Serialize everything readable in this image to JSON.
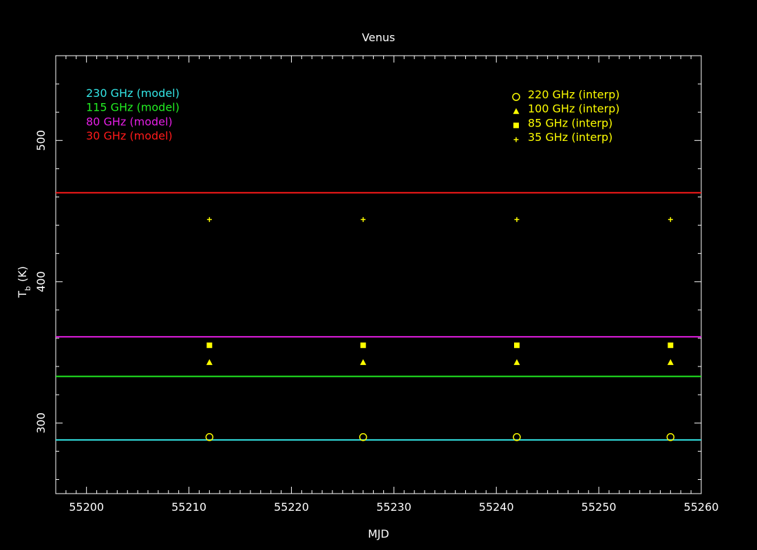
{
  "chart_data": {
    "type": "scatter",
    "title": "Venus",
    "xlabel": "MJD",
    "ylabel_main": "T",
    "ylabel_sub": "b",
    "ylabel_unit": "(K)",
    "xlim": [
      55197,
      55260
    ],
    "ylim": [
      250,
      560
    ],
    "x_ticks": [
      55200,
      55210,
      55220,
      55230,
      55240,
      55250,
      55260
    ],
    "y_ticks": [
      300,
      400,
      500
    ],
    "model_lines": [
      {
        "name": "230 GHz (model)",
        "color": "#33e6e6",
        "y": 288
      },
      {
        "name": "115 GHz (model)",
        "color": "#22ee22",
        "y": 333
      },
      {
        "name": "80 GHz (model)",
        "color": "#e61ee6",
        "y": 361
      },
      {
        "name": "30 GHz (model)",
        "color": "#ff1a1a",
        "y": 463
      }
    ],
    "series": [
      {
        "name": "220 GHz (interp)",
        "marker": "circle",
        "color": "#ffff00",
        "x": [
          55212,
          55227,
          55242,
          55257
        ],
        "y": [
          290,
          290,
          290,
          290
        ]
      },
      {
        "name": "100 GHz (interp)",
        "marker": "triangle",
        "color": "#ffff00",
        "x": [
          55212,
          55227,
          55242,
          55257
        ],
        "y": [
          343,
          343,
          343,
          343
        ]
      },
      {
        "name": "85 GHz (interp)",
        "marker": "square",
        "color": "#ffff00",
        "x": [
          55212,
          55227,
          55242,
          55257
        ],
        "y": [
          355,
          355,
          355,
          355
        ]
      },
      {
        "name": "35 GHz (interp)",
        "marker": "plus",
        "color": "#ffff00",
        "x": [
          55212,
          55227,
          55242,
          55257
        ],
        "y": [
          444,
          444,
          444,
          444
        ]
      }
    ],
    "legend_left_placement": "top-left",
    "legend_right_placement": "top-right",
    "grid": false
  }
}
